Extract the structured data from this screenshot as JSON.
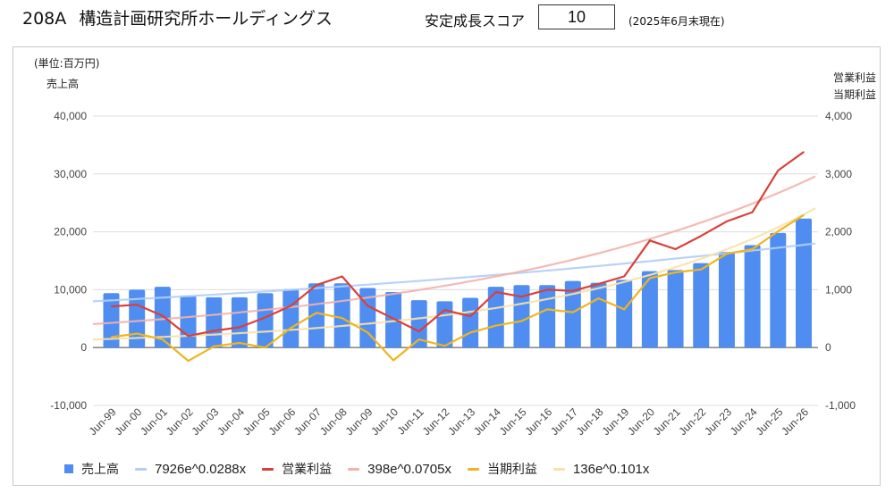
{
  "header": {
    "code": "208A",
    "company_name": "構造計画研究所ホールディングス",
    "score_label": "安定成長スコア",
    "score_value": "10",
    "as_of": "(2025年6月末現在)"
  },
  "colors": {
    "sales": "#4f8ef0",
    "sales_trend": "#b3cdf5",
    "op_profit": "#d9403a",
    "op_trend": "#f2b1ad",
    "net_profit": "#f0b51e",
    "net_trend": "#fae1a6",
    "grid": "#dcdcdc",
    "baseline": "#777777"
  },
  "chart_data": {
    "type": "bar+line",
    "unit_label": "(単位:百万円)",
    "left_axis_title": "売上高",
    "right_axis_title_1": "営業利益",
    "right_axis_title_2": "当期利益",
    "left_ylim": [
      -10000,
      40000
    ],
    "right_ylim": [
      -1000,
      4000
    ],
    "left_ticks": [
      "40,000",
      "30,000",
      "20,000",
      "10,000",
      "0",
      "-10,000"
    ],
    "left_tick_values": [
      40000,
      30000,
      20000,
      10000,
      0,
      -10000
    ],
    "right_ticks": [
      "4,000",
      "3,000",
      "2,000",
      "1,000",
      "0",
      "-1,000"
    ],
    "right_tick_values": [
      4000,
      3000,
      2000,
      1000,
      0,
      -1000
    ],
    "grid": true,
    "legend_position": "bottom",
    "categories": [
      "Jun-99",
      "Jun-00",
      "Jun-01",
      "Jun-02",
      "Jun-03",
      "Jun-04",
      "Jun-05",
      "Jun-06",
      "Jun-07",
      "Jun-08",
      "Jun-09",
      "Jun-10",
      "Jun-11",
      "Jun-12",
      "Jun-13",
      "Jun-14",
      "Jun-15",
      "Jun-16",
      "Jun-17",
      "Jun-18",
      "Jun-19",
      "Jun-20",
      "Jun-21",
      "Jun-22",
      "Jun-23",
      "Jun-24",
      "Jun-25",
      "Jun-26"
    ],
    "series": [
      {
        "name": "売上高",
        "type": "bar",
        "axis": "left",
        "values": [
          9400,
          10000,
          10500,
          8900,
          8700,
          8700,
          9400,
          10100,
          11100,
          11100,
          10300,
          9600,
          8200,
          8000,
          8600,
          10500,
          10800,
          10800,
          11500,
          11200,
          11700,
          13200,
          13400,
          14600,
          16500,
          17700,
          19800,
          22300
        ]
      },
      {
        "name": "営業利益",
        "type": "line",
        "axis": "right",
        "values": [
          710,
          740,
          550,
          200,
          290,
          350,
          520,
          720,
          1080,
          1230,
          720,
          500,
          280,
          650,
          540,
          960,
          880,
          1000,
          980,
          1100,
          1230,
          1850,
          1700,
          1930,
          2180,
          2340,
          3060,
          3380
        ]
      },
      {
        "name": "当期利益",
        "type": "line",
        "axis": "right",
        "values": [
          180,
          240,
          140,
          -230,
          20,
          80,
          0,
          340,
          600,
          510,
          260,
          -220,
          140,
          30,
          260,
          380,
          460,
          660,
          610,
          850,
          660,
          1200,
          1300,
          1350,
          1620,
          1700,
          2010,
          2290
        ]
      }
    ],
    "trendlines": [
      {
        "name": "7926e^0.0288x",
        "axis": "left",
        "a": 7926,
        "b": 0.0288
      },
      {
        "name": "398e^0.0705x",
        "axis": "right",
        "a": 398,
        "b": 0.0705
      },
      {
        "name": "136e^0.101x",
        "axis": "right",
        "a": 136,
        "b": 0.101
      }
    ]
  }
}
